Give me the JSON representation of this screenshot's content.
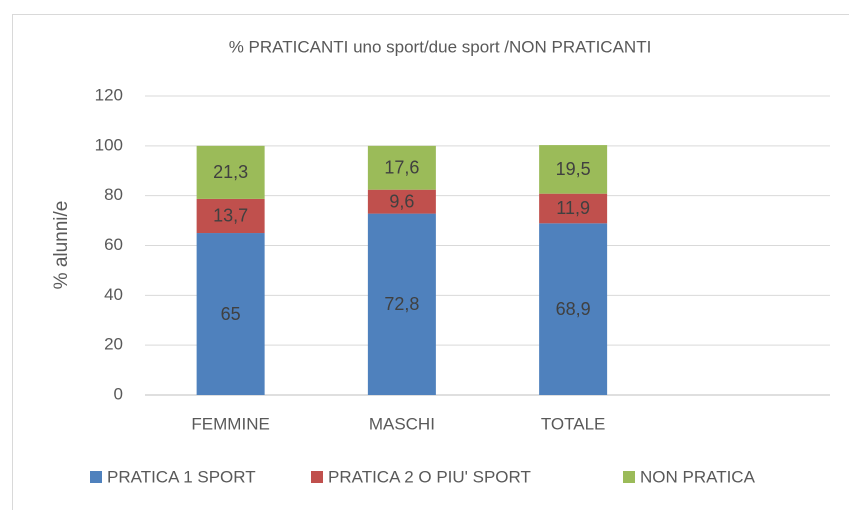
{
  "chart_data": {
    "type": "stacked_bar",
    "title": "%  PRATICANTI uno sport/due sport /NON PRATICANTI",
    "y_label": "% alunni/e",
    "categories": [
      "FEMMINE",
      "MASCHI",
      "TOTALE",
      null
    ],
    "series": [
      {
        "name": "PRATICA 1 SPORT",
        "color": "#4f81bd",
        "values": [
          65,
          72.8,
          68.9,
          null
        ],
        "value_labels": [
          "65",
          "72,8",
          "68,9",
          null
        ]
      },
      {
        "name": "PRATICA 2 O PIU' SPORT",
        "color": "#c0504d",
        "values": [
          13.7,
          9.6,
          11.9,
          null
        ],
        "value_labels": [
          "13,7",
          "9,6",
          "11,9",
          null
        ]
      },
      {
        "name": "NON PRATICA",
        "color": "#9bbb59",
        "values": [
          21.3,
          17.6,
          19.5,
          null
        ],
        "value_labels": [
          "21,3",
          "17,6",
          "19,5",
          null
        ]
      }
    ],
    "ylim": [
      0,
      120
    ],
    "yticks": [
      0,
      20,
      40,
      60,
      80,
      100,
      120
    ],
    "grid": true,
    "legend": "bottom"
  }
}
